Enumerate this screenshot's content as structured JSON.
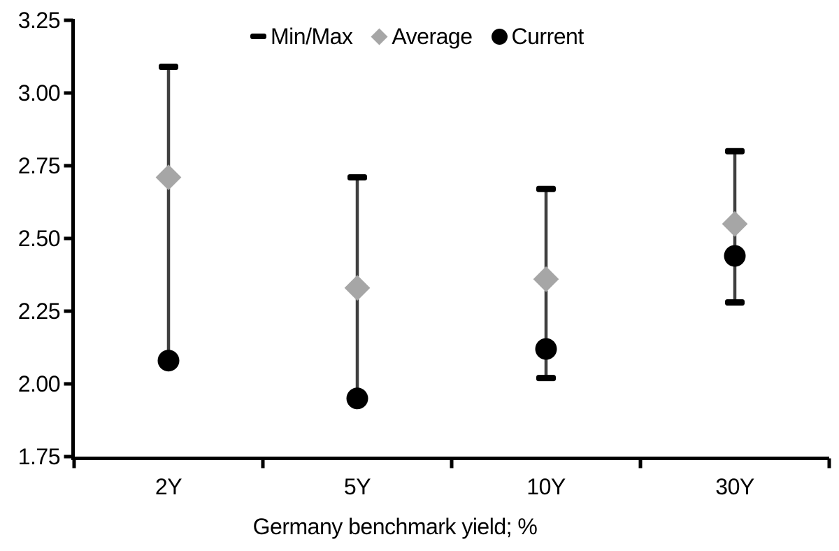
{
  "chart_data": {
    "type": "scatter",
    "subtype": "min-max-range-with-markers",
    "title": "",
    "xlabel": "Germany benchmark yield; %",
    "ylabel": "",
    "ylim": [
      1.75,
      3.25
    ],
    "ytick_step": 0.25,
    "ytick_labels": [
      "1.75",
      "2.00",
      "2.25",
      "2.50",
      "2.75",
      "3.00",
      "3.25"
    ],
    "grid": false,
    "legend_position": "top-center",
    "categories": [
      "2Y",
      "5Y",
      "10Y",
      "30Y"
    ],
    "series": [
      {
        "name": "Min/Max",
        "marker": "dash",
        "color": "#000000",
        "min": [
          2.08,
          1.95,
          2.02,
          2.28
        ],
        "max": [
          3.09,
          2.71,
          2.67,
          2.8
        ]
      },
      {
        "name": "Average",
        "marker": "diamond",
        "color": "#a6a6a6",
        "values": [
          2.71,
          2.33,
          2.36,
          2.55
        ]
      },
      {
        "name": "Current",
        "marker": "circle",
        "color": "#000000",
        "values": [
          2.08,
          1.95,
          2.12,
          2.44
        ]
      }
    ],
    "colors": {
      "whisker": "#3f3f3f",
      "cap": "#000000",
      "axis": "#000000",
      "text": "#000000",
      "background": "#ffffff"
    }
  }
}
